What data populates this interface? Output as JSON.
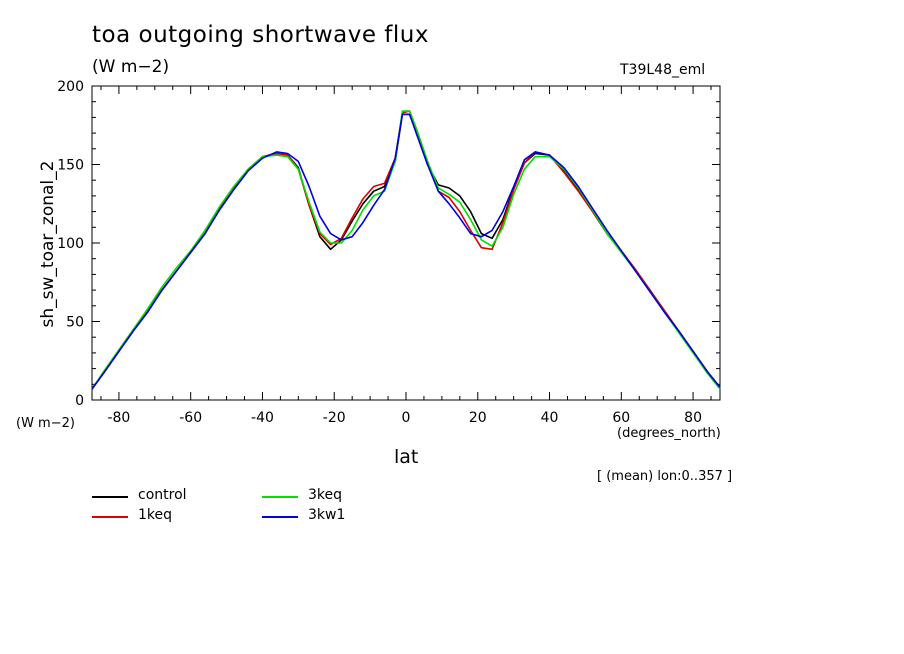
{
  "header": {
    "title": "toa outgoing shortwave flux",
    "units": "(W m−2)",
    "run_label": "T39L48_eml",
    "y_units": "(W m−2)",
    "x_units": "(degrees_north)",
    "mean_note": "[ (mean) lon:0..357 ]"
  },
  "chart_data": {
    "type": "line",
    "title": "toa outgoing shortwave flux",
    "subtitle": "(W m−2)",
    "xlabel": "lat",
    "ylabel": "sh_sw_toar_zonal_2",
    "xlim": [
      -87.5,
      87.5
    ],
    "ylim": [
      0,
      200
    ],
    "xticks": [
      -80,
      -60,
      -40,
      -20,
      0,
      20,
      40,
      60,
      80
    ],
    "yticks": [
      0,
      50,
      100,
      150,
      200
    ],
    "legend_position": "bottom-left, below plot",
    "grid": false,
    "series": [
      {
        "name": "control",
        "color": "#000000",
        "x": [
          -87.5,
          -84,
          -80,
          -76,
          -72,
          -68,
          -64,
          -60,
          -56,
          -52,
          -48,
          -44,
          -40,
          -36,
          -33,
          -30,
          -27,
          -24,
          -21,
          -18,
          -15,
          -12,
          -9,
          -6,
          -3,
          -1,
          1,
          3,
          6,
          9,
          12,
          15,
          18,
          21,
          24,
          27,
          30,
          33,
          36,
          40,
          44,
          48,
          52,
          56,
          60,
          64,
          68,
          72,
          76,
          80,
          84,
          87.5
        ],
        "y": [
          7,
          18,
          31,
          44,
          56,
          70,
          82,
          94,
          106,
          121,
          134,
          146,
          155,
          157,
          156,
          148,
          124,
          104,
          96,
          102,
          114,
          125,
          133,
          136,
          152,
          182,
          182,
          170,
          150,
          137,
          135,
          130,
          120,
          106,
          103,
          115,
          135,
          151,
          157,
          156,
          146,
          134,
          120,
          106,
          95,
          82,
          70,
          56,
          44,
          31,
          18,
          8
        ]
      },
      {
        "name": "1keq",
        "color": "#e00000",
        "x": [
          -87.5,
          -84,
          -80,
          -76,
          -72,
          -68,
          -64,
          -60,
          -56,
          -52,
          -48,
          -44,
          -40,
          -36,
          -33,
          -30,
          -27,
          -24,
          -21,
          -18,
          -15,
          -12,
          -9,
          -6,
          -3,
          -1,
          1,
          3,
          6,
          9,
          12,
          15,
          18,
          21,
          24,
          27,
          30,
          33,
          36,
          40,
          44,
          48,
          52,
          56,
          60,
          64,
          68,
          72,
          76,
          80,
          84,
          87.5
        ],
        "y": [
          7,
          18,
          31,
          44,
          57,
          70,
          82,
          94,
          106,
          122,
          135,
          147,
          155,
          157,
          156,
          147,
          124,
          106,
          99,
          103,
          116,
          128,
          136,
          138,
          154,
          183,
          184,
          172,
          152,
          133,
          129,
          120,
          108,
          97,
          96,
          113,
          134,
          151,
          158,
          156,
          145,
          133,
          120,
          106,
          95,
          83,
          70,
          57,
          44,
          31,
          18,
          8
        ]
      },
      {
        "name": "3keq",
        "color": "#00e000",
        "x": [
          -87.5,
          -84,
          -80,
          -76,
          -72,
          -68,
          -64,
          -60,
          -56,
          -52,
          -48,
          -44,
          -40,
          -36,
          -33,
          -30,
          -27,
          -24,
          -21,
          -18,
          -15,
          -12,
          -9,
          -6,
          -3,
          -1,
          1,
          3,
          6,
          9,
          12,
          15,
          18,
          21,
          24,
          27,
          30,
          33,
          36,
          40,
          44,
          48,
          52,
          56,
          60,
          64,
          68,
          72,
          76,
          80,
          84,
          87.5
        ],
        "y": [
          7,
          19,
          32,
          45,
          58,
          72,
          84,
          95,
          108,
          123,
          136,
          147,
          155,
          156,
          155,
          147,
          126,
          107,
          100,
          100,
          108,
          121,
          130,
          133,
          152,
          184,
          184,
          172,
          152,
          135,
          131,
          126,
          115,
          102,
          98,
          110,
          131,
          147,
          155,
          155,
          147,
          135,
          121,
          106,
          94,
          82,
          69,
          56,
          43,
          30,
          17,
          7
        ]
      },
      {
        "name": "3kw1",
        "color": "#0000e0",
        "x": [
          -87.5,
          -84,
          -80,
          -76,
          -72,
          -68,
          -64,
          -60,
          -56,
          -52,
          -48,
          -44,
          -40,
          -36,
          -33,
          -30,
          -27,
          -24,
          -21,
          -18,
          -15,
          -12,
          -9,
          -6,
          -3,
          -1,
          1,
          3,
          6,
          9,
          12,
          15,
          18,
          21,
          24,
          27,
          30,
          33,
          36,
          40,
          44,
          48,
          52,
          56,
          60,
          64,
          68,
          72,
          76,
          80,
          84,
          87.5
        ],
        "y": [
          7,
          18,
          31,
          44,
          56,
          70,
          82,
          94,
          106,
          121,
          134,
          146,
          154,
          158,
          157,
          152,
          136,
          117,
          106,
          102,
          104,
          113,
          124,
          134,
          154,
          182,
          182,
          169,
          150,
          133,
          125,
          116,
          106,
          104,
          108,
          120,
          136,
          153,
          158,
          156,
          148,
          136,
          122,
          108,
          95,
          82,
          69,
          56,
          44,
          31,
          18,
          8
        ]
      }
    ]
  }
}
